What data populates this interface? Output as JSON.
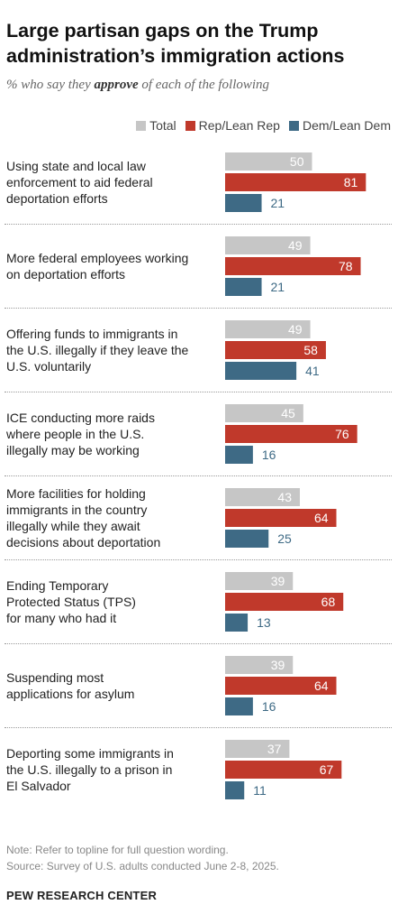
{
  "title": "Large partisan gaps on the Trump administration’s immigration actions",
  "subtitle_pre": "% who say they ",
  "subtitle_emph": "approve",
  "subtitle_post": " of each of the following",
  "colors": {
    "total": "#c6c6c6",
    "rep": "#c0392b",
    "dem": "#3e6a85",
    "total_text": "#ffffff",
    "rep_text": "#ffffff",
    "dem_text": "#3e6a85"
  },
  "chart_data": {
    "type": "bar",
    "orientation": "horizontal",
    "series": [
      {
        "name": "Total",
        "values": [
          50,
          49,
          49,
          45,
          43,
          39,
          39,
          37
        ]
      },
      {
        "name": "Rep/Lean Rep",
        "values": [
          81,
          78,
          58,
          76,
          64,
          68,
          64,
          67
        ]
      },
      {
        "name": "Dem/Lean Dem",
        "values": [
          21,
          21,
          41,
          16,
          25,
          13,
          16,
          11
        ]
      }
    ],
    "categories": [
      "Using state and local law enforcement to aid federal deportation efforts",
      "More federal employees working on deportation efforts",
      "Offering funds to immigrants in the U.S. illegally if they leave the U.S. voluntarily",
      "ICE conducting more raids where people in the U.S. illegally may be working",
      "More facilities for holding immigrants in the country illegally while they await decisions about deportation",
      "Ending Temporary Protected Status (TPS) for many who had it",
      "Suspending most applications for asylum",
      "Deporting some immigrants in the U.S. illegally to a prison in El Salvador"
    ],
    "legend_placement": "top-right"
  },
  "category_lines": [
    [
      "Using state and local law",
      "enforcement to aid federal",
      "deportation efforts"
    ],
    [
      "More federal employees working",
      "on deportation efforts"
    ],
    [
      "Offering funds to immigrants in",
      "the U.S. illegally if they leave the",
      "U.S. voluntarily"
    ],
    [
      "ICE conducting more raids",
      "where people in the U.S.",
      "illegally may be working"
    ],
    [
      "More facilities for holding",
      "immigrants in the country",
      "illegally while they await",
      "decisions about deportation"
    ],
    [
      "Ending Temporary",
      "Protected Status (TPS)",
      "for many who had it"
    ],
    [
      "Suspending most",
      "applications for asylum"
    ],
    [
      "Deporting some immigrants in",
      "the U.S. illegally to a prison in",
      "El Salvador"
    ]
  ],
  "note": "Note: Refer to topline for full question wording.",
  "source": "Source: Survey of U.S. adults conducted June 2-8, 2025.",
  "org": "PEW RESEARCH CENTER"
}
